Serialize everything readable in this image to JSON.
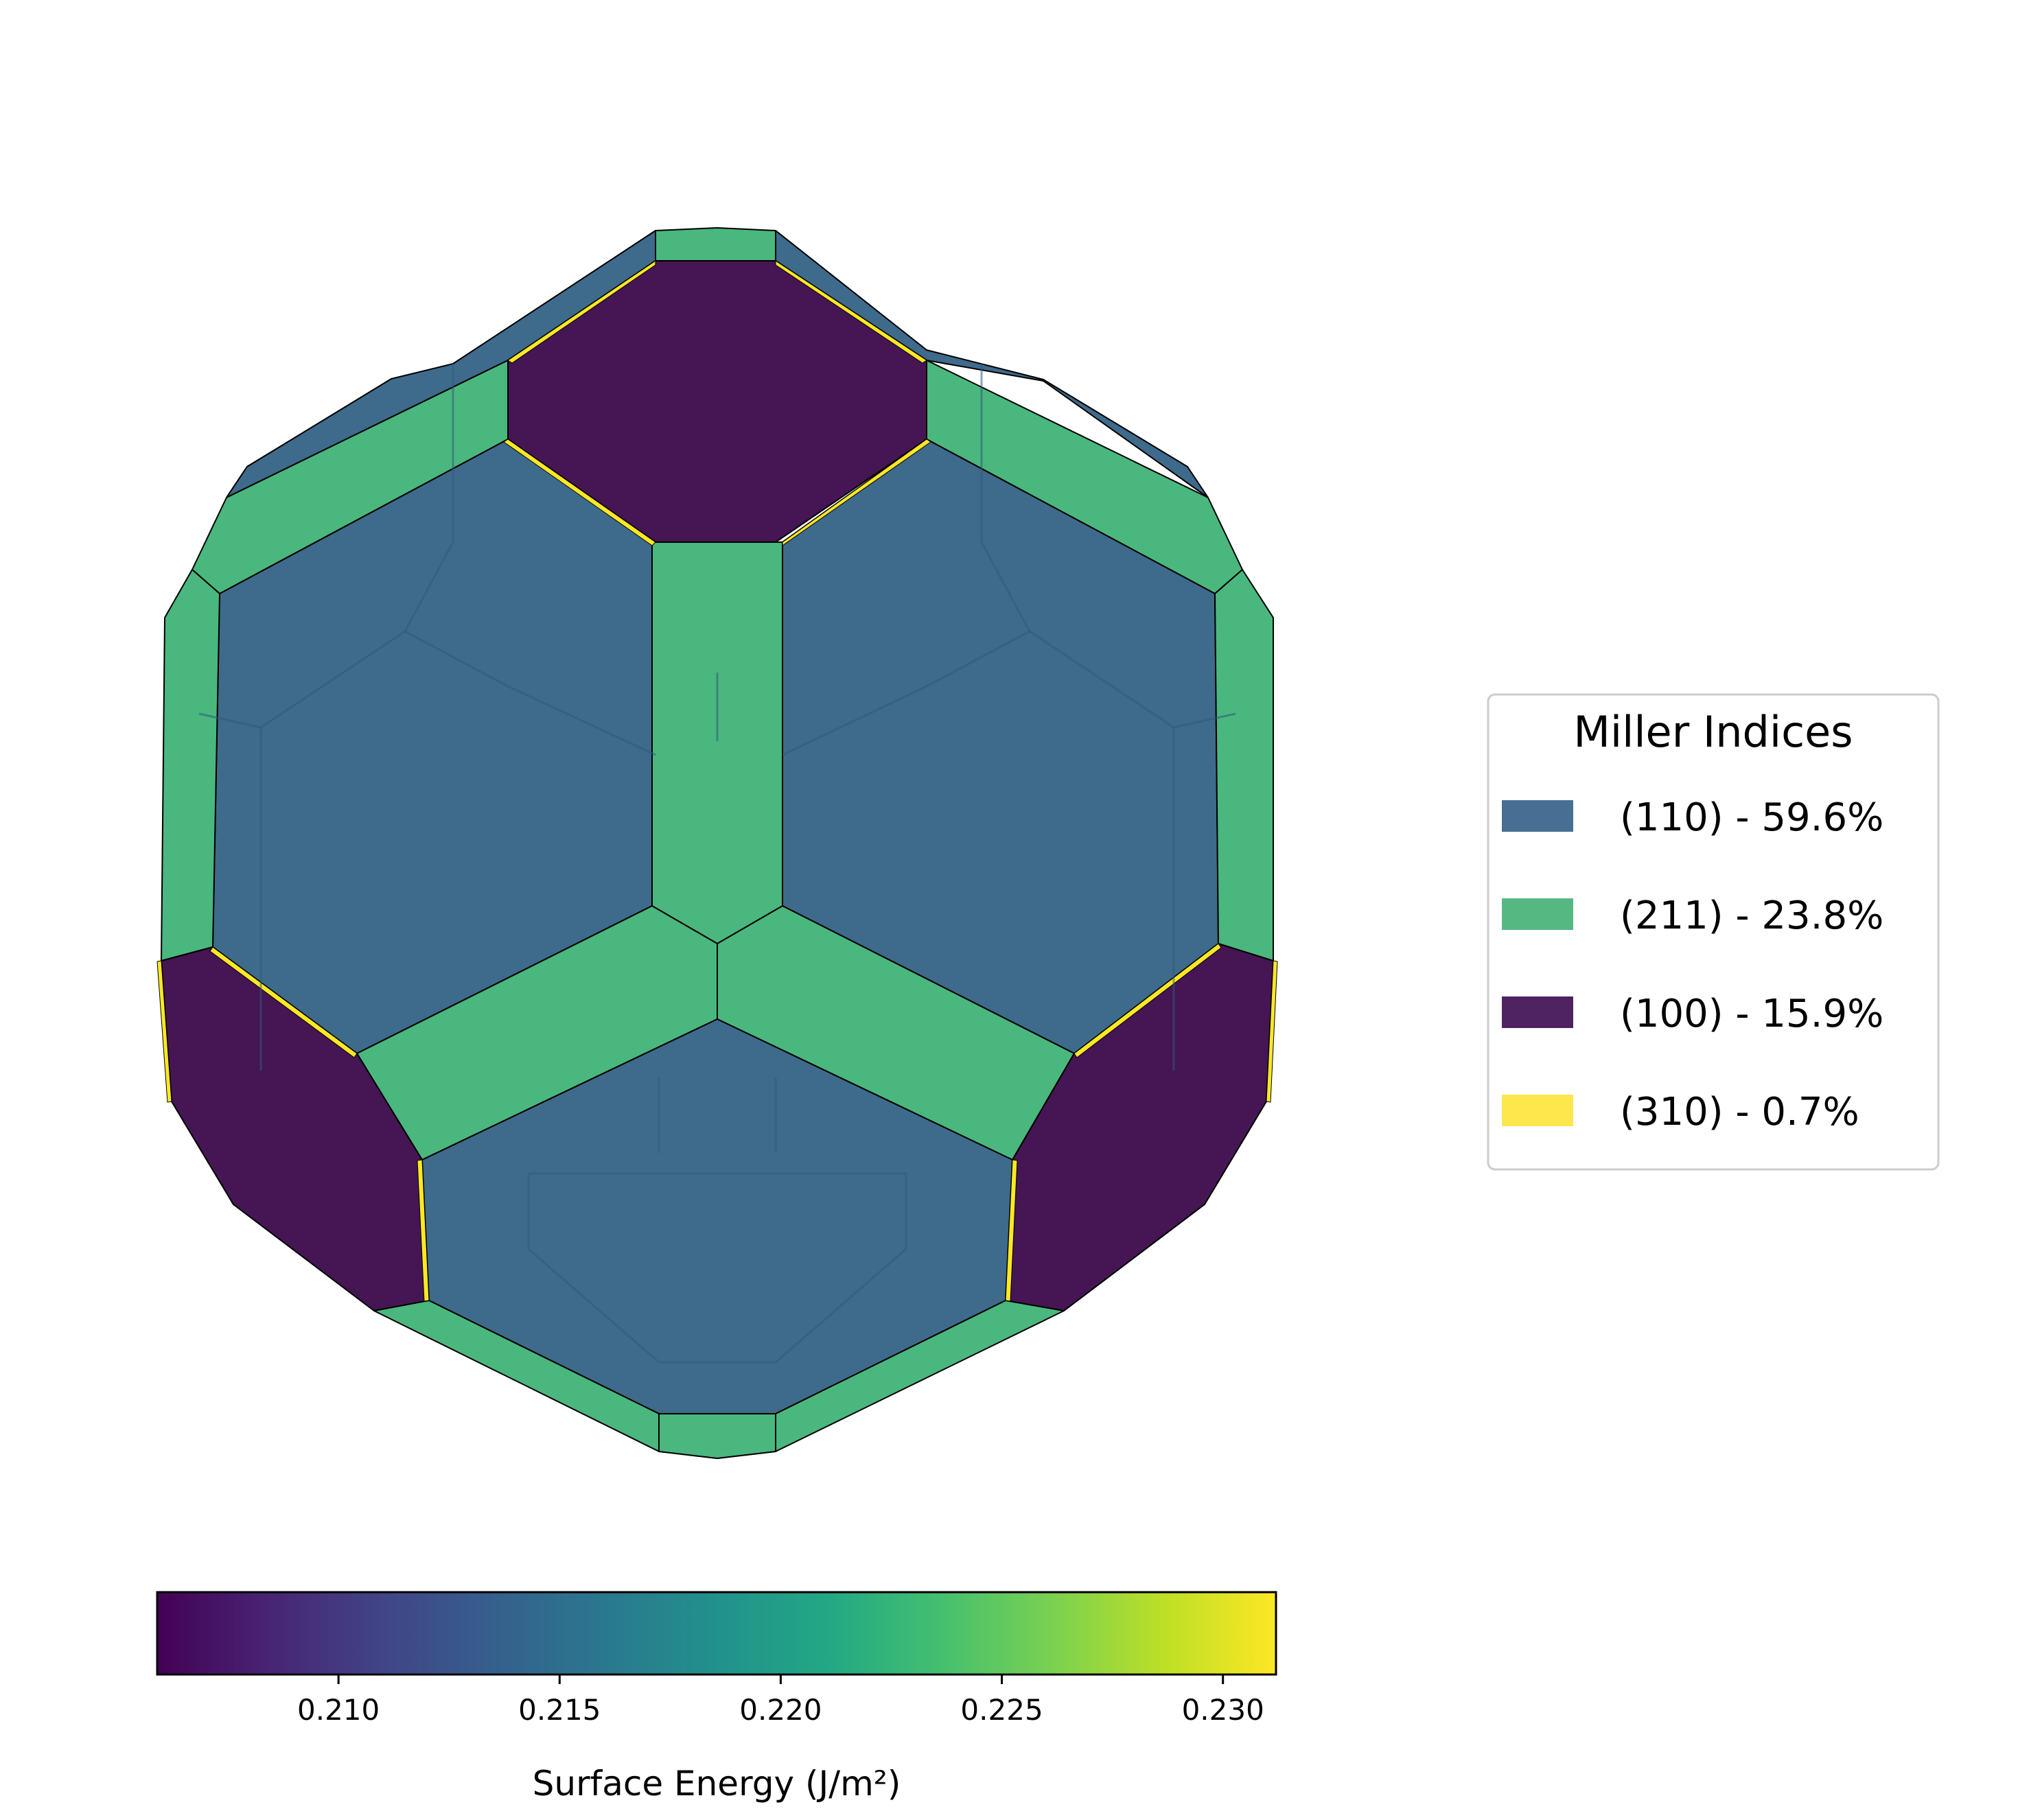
{
  "chart_data": {
    "type": "other",
    "description_type": "wulff-shape",
    "legend": {
      "title": "Miller Indices",
      "placement": "right",
      "entries": [
        {
          "label": "(110) - 59.6%",
          "miller": "(110)",
          "area_percent": 59.6,
          "color": "#466f93"
        },
        {
          "label": "(211) - 23.8%",
          "miller": "(211)",
          "area_percent": 23.8,
          "color": "#55b883"
        },
        {
          "label": "(100) - 15.9%",
          "miller": "(100)",
          "area_percent": 15.9,
          "color": "#4f2262"
        },
        {
          "label": "(310) - 0.7%",
          "miller": "(310)",
          "area_percent": 0.7,
          "color": "#fde74c"
        }
      ]
    },
    "colorbar": {
      "label": "Surface Energy (J/m²)",
      "range": [
        0.2059,
        0.2312
      ],
      "ticks": [
        0.21,
        0.215,
        0.22,
        0.225,
        0.23
      ],
      "tick_labels": [
        "0.210",
        "0.215",
        "0.220",
        "0.225",
        "0.230"
      ],
      "colormap": "viridis"
    },
    "face_colors": {
      "(110)": "#3e6a8c",
      "(211)": "#4ab77e",
      "(100)": "#451554",
      "(310)": "#fde725"
    }
  }
}
